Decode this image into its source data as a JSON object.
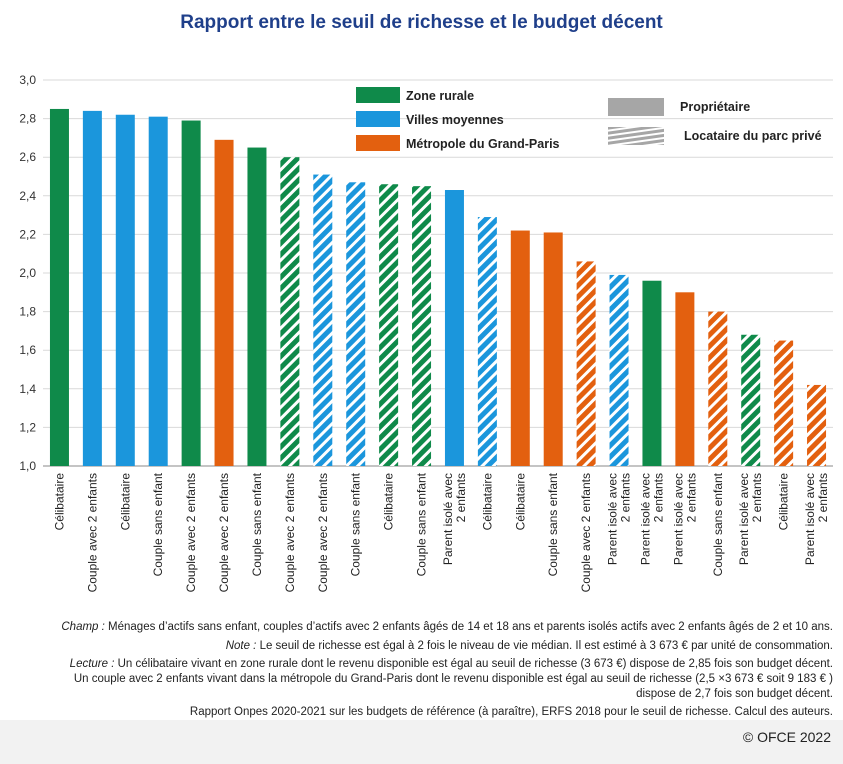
{
  "chart_data": {
    "type": "bar",
    "title": "Rapport entre le seuil de richesse et le budget décent",
    "ylim": [
      1.0,
      3.0
    ],
    "yticks": [
      "1,0",
      "1,2",
      "1,4",
      "1,6",
      "1,8",
      "2,0",
      "2,2",
      "2,4",
      "2,6",
      "2,8",
      "3,0"
    ],
    "grid": true,
    "legend_zones": [
      {
        "label": "Zone  rurale",
        "color": "#0f8a4a"
      },
      {
        "label": "Villes moyennes",
        "color": "#1b96dc"
      },
      {
        "label": "Métropole du Grand-Paris",
        "color": "#e3600f"
      }
    ],
    "legend_status": [
      {
        "label": "Propriétaire",
        "pattern": "solid"
      },
      {
        "label": "Locataire du parc privé",
        "pattern": "hatched"
      }
    ],
    "bars": [
      {
        "category": "Célibataire",
        "value": 2.85,
        "zone": "rural",
        "status": "owner"
      },
      {
        "category": "Couple avec 2 enfants",
        "value": 2.84,
        "zone": "ville",
        "status": "owner"
      },
      {
        "category": "Célibataire",
        "value": 2.82,
        "zone": "ville",
        "status": "owner"
      },
      {
        "category": "Couple sans enfant",
        "value": 2.81,
        "zone": "ville",
        "status": "owner"
      },
      {
        "category": "Couple avec 2 enfants",
        "value": 2.79,
        "zone": "rural",
        "status": "owner"
      },
      {
        "category": "Couple avec 2 enfants",
        "value": 2.69,
        "zone": "paris",
        "status": "owner"
      },
      {
        "category": "Couple sans enfant",
        "value": 2.65,
        "zone": "rural",
        "status": "owner"
      },
      {
        "category": "Couple avec 2 enfants",
        "value": 2.6,
        "zone": "rural",
        "status": "tenant"
      },
      {
        "category": "Couple avec 2 enfants",
        "value": 2.51,
        "zone": "ville",
        "status": "tenant"
      },
      {
        "category": "Couple sans enfant",
        "value": 2.47,
        "zone": "ville",
        "status": "tenant"
      },
      {
        "category": "Célibataire",
        "value": 2.46,
        "zone": "rural",
        "status": "tenant"
      },
      {
        "category": "Couple sans enfant",
        "value": 2.45,
        "zone": "rural",
        "status": "tenant"
      },
      {
        "category": "Parent isolé avec\n2 enfants",
        "value": 2.43,
        "zone": "ville",
        "status": "owner"
      },
      {
        "category": "Célibataire",
        "value": 2.29,
        "zone": "ville",
        "status": "tenant"
      },
      {
        "category": "Célibataire",
        "value": 2.22,
        "zone": "paris",
        "status": "owner"
      },
      {
        "category": "Couple sans enfant",
        "value": 2.21,
        "zone": "paris",
        "status": "owner"
      },
      {
        "category": "Couple avec 2 enfants",
        "value": 2.06,
        "zone": "paris",
        "status": "tenant"
      },
      {
        "category": "Parent isolé avec\n2 enfants",
        "value": 1.99,
        "zone": "ville",
        "status": "tenant"
      },
      {
        "category": "Parent isolé avec\n2 enfants",
        "value": 1.96,
        "zone": "rural",
        "status": "owner"
      },
      {
        "category": "Parent isolé avec\n2 enfants",
        "value": 1.9,
        "zone": "paris",
        "status": "owner"
      },
      {
        "category": "Couple sans enfant",
        "value": 1.8,
        "zone": "paris",
        "status": "tenant"
      },
      {
        "category": "Parent isolé avec\n2 enfants",
        "value": 1.68,
        "zone": "rural",
        "status": "tenant"
      },
      {
        "category": "Célibataire",
        "value": 1.65,
        "zone": "paris",
        "status": "tenant"
      },
      {
        "category": "Parent isolé avec\n2 enfants",
        "value": 1.42,
        "zone": "paris",
        "status": "tenant"
      }
    ]
  },
  "colors": {
    "rural": "#0f8a4a",
    "ville": "#1b96dc",
    "paris": "#e3600f",
    "grid": "#d9d9d9",
    "legend_gray": "#a6a6a6"
  },
  "notes": {
    "champ_label": "Champ :",
    "champ_text": " Ménages d’actifs sans enfant, couples d’actifs avec 2 enfants âgés de 14 et 18 ans et parents isolés actifs avec 2 enfants âgés de 2 et 10 ans.",
    "note_label": "Note :",
    "note_text": " Le seuil de richesse est égal à 2 fois le niveau de vie médian. Il est estimé à 3 673 € par unité de consommation.",
    "lecture_label": "Lecture :",
    "lecture_text_1": " Un célibataire vivant en zone rurale dont le revenu disponible est égal au seuil de richesse (3 673 €) dispose de 2,85 fois son budget décent.",
    "lecture_text_2": "Un couple avec 2 enfants vivant dans la métropole du Grand-Paris dont le revenu disponible est égal au seuil de richesse (2,5 ×3 673 € soit 9 183 € )",
    "lecture_text_3": "dispose de 2,7 fois son budget décent.",
    "source": "Rapport Onpes 2020-2021 sur les budgets de référence (à paraître), ERFS 2018 pour le seuil de richesse. Calcul des auteurs."
  },
  "copyright": "© OFCE 2022"
}
